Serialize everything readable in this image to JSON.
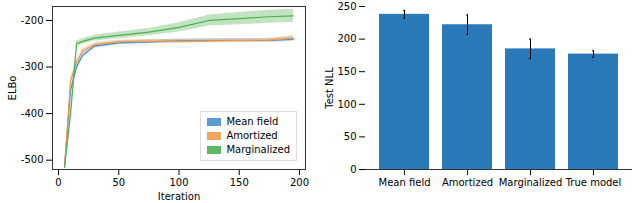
{
  "chart_data": [
    {
      "type": "line",
      "x_label": "Iteration",
      "y_label": "ELBo",
      "xlim": [
        -5,
        205
      ],
      "xticks": [
        0,
        50,
        100,
        150,
        200
      ],
      "ylim": [
        -520,
        -170
      ],
      "yticks": [
        -500,
        -400,
        -300,
        -200
      ],
      "legend": "bottom-right",
      "grid": false,
      "x": [
        5,
        10,
        15,
        20,
        30,
        50,
        75,
        100,
        125,
        150,
        175,
        195
      ],
      "series": [
        {
          "name": "Mean field",
          "color": "#4a8fcf",
          "values": [
            -515,
            -350,
            -300,
            -275,
            -255,
            -248,
            -246,
            -244,
            -243,
            -243,
            -243,
            -240
          ],
          "lower": [
            -518,
            -356,
            -305,
            -280,
            -259,
            -252,
            -250,
            -248,
            -247,
            -247,
            -247,
            -245
          ],
          "upper": [
            -512,
            -344,
            -295,
            -270,
            -251,
            -244,
            -242,
            -240,
            -239,
            -239,
            -239,
            -235
          ]
        },
        {
          "name": "Amortized",
          "color": "#f09a4a",
          "values": [
            -515,
            -330,
            -290,
            -265,
            -252,
            -246,
            -245,
            -245,
            -244,
            -243,
            -242,
            -238
          ],
          "lower": [
            -518,
            -336,
            -295,
            -270,
            -256,
            -250,
            -249,
            -249,
            -248,
            -247,
            -246,
            -243
          ],
          "upper": [
            -512,
            -324,
            -285,
            -260,
            -248,
            -242,
            -241,
            -241,
            -240,
            -239,
            -238,
            -233
          ]
        },
        {
          "name": "Marginalized",
          "color": "#4cb050",
          "values": [
            -515,
            -400,
            -250,
            -245,
            -238,
            -232,
            -225,
            -215,
            -200,
            -196,
            -192,
            -190
          ],
          "lower": [
            -518,
            -410,
            -256,
            -251,
            -244,
            -239,
            -233,
            -225,
            -212,
            -209,
            -206,
            -204
          ],
          "upper": [
            -512,
            -390,
            -244,
            -239,
            -232,
            -225,
            -217,
            -205,
            -188,
            -183,
            -178,
            -176
          ]
        }
      ]
    },
    {
      "type": "bar",
      "y_label": "Test NLL",
      "categories": [
        "Mean field",
        "Amortized",
        "Marginalized",
        "True model"
      ],
      "values": [
        238,
        222,
        185,
        177
      ],
      "errors": [
        6,
        15,
        15,
        5
      ],
      "color": "#2a7ab9",
      "ylim": [
        0,
        250
      ],
      "yticks": [
        0,
        50,
        100,
        150,
        200,
        250
      ],
      "grid": false
    }
  ]
}
